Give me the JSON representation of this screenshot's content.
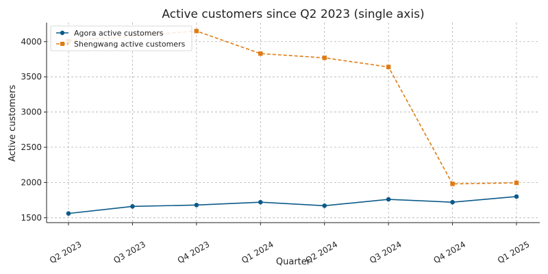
{
  "chart_data": {
    "type": "line",
    "title": "Active customers since Q2 2023 (single axis)",
    "xlabel": "Quarter",
    "ylabel": "Active customers",
    "categories": [
      "Q2 2023",
      "Q3 2023",
      "Q4 2023",
      "Q1 2024",
      "Q2 2024",
      "Q3 2024",
      "Q4 2024",
      "Q1 2025"
    ],
    "yticks": [
      1500,
      2000,
      2500,
      3000,
      3500,
      4000
    ],
    "ylim": [
      1430,
      4270
    ],
    "grid": true,
    "legend_position": "top-left",
    "series": [
      {
        "name": "Agora active customers",
        "color": "#0b5a8a",
        "marker": "circle",
        "line_style": "solid",
        "values": [
          1560,
          1660,
          1680,
          1720,
          1670,
          1760,
          1720,
          1800
        ]
      },
      {
        "name": "Shengwang active customers",
        "color": "#e07b10",
        "marker": "square",
        "line_style": "dashed",
        "values": [
          4010,
          null,
          4150,
          3830,
          3770,
          3640,
          1980,
          1995
        ]
      }
    ]
  }
}
